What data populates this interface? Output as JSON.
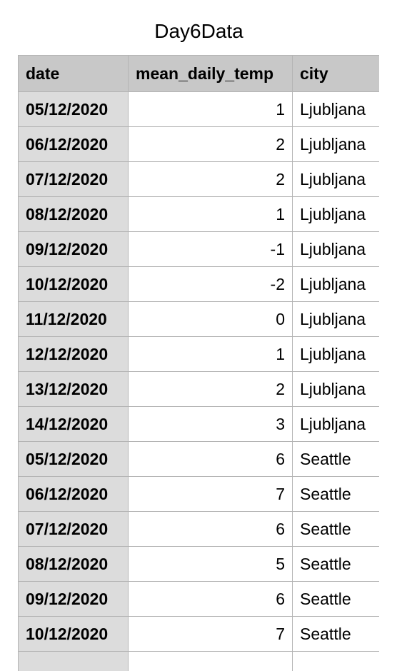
{
  "title": "Day6Data",
  "table": {
    "columns": [
      "date",
      "mean_daily_temp",
      "city"
    ],
    "rows": [
      [
        "05/12/2020",
        "1",
        "Ljubljana"
      ],
      [
        "06/12/2020",
        "2",
        "Ljubljana"
      ],
      [
        "07/12/2020",
        "2",
        "Ljubljana"
      ],
      [
        "08/12/2020",
        "1",
        "Ljubljana"
      ],
      [
        "09/12/2020",
        "-1",
        "Ljubljana"
      ],
      [
        "10/12/2020",
        "-2",
        "Ljubljana"
      ],
      [
        "11/12/2020",
        "0",
        "Ljubljana"
      ],
      [
        "12/12/2020",
        "1",
        "Ljubljana"
      ],
      [
        "13/12/2020",
        "2",
        "Ljubljana"
      ],
      [
        "14/12/2020",
        "3",
        "Ljubljana"
      ],
      [
        "05/12/2020",
        "6",
        "Seattle"
      ],
      [
        "06/12/2020",
        "7",
        "Seattle"
      ],
      [
        "07/12/2020",
        "6",
        "Seattle"
      ],
      [
        "08/12/2020",
        "5",
        "Seattle"
      ],
      [
        "09/12/2020",
        "6",
        "Seattle"
      ],
      [
        "10/12/2020",
        "7",
        "Seattle"
      ],
      [
        "",
        "",
        ""
      ]
    ]
  },
  "colors": {
    "header_bg": "#c8c8c8",
    "date_column_bg": "#dcdcdc",
    "grid_line": "#b4b4b4"
  }
}
